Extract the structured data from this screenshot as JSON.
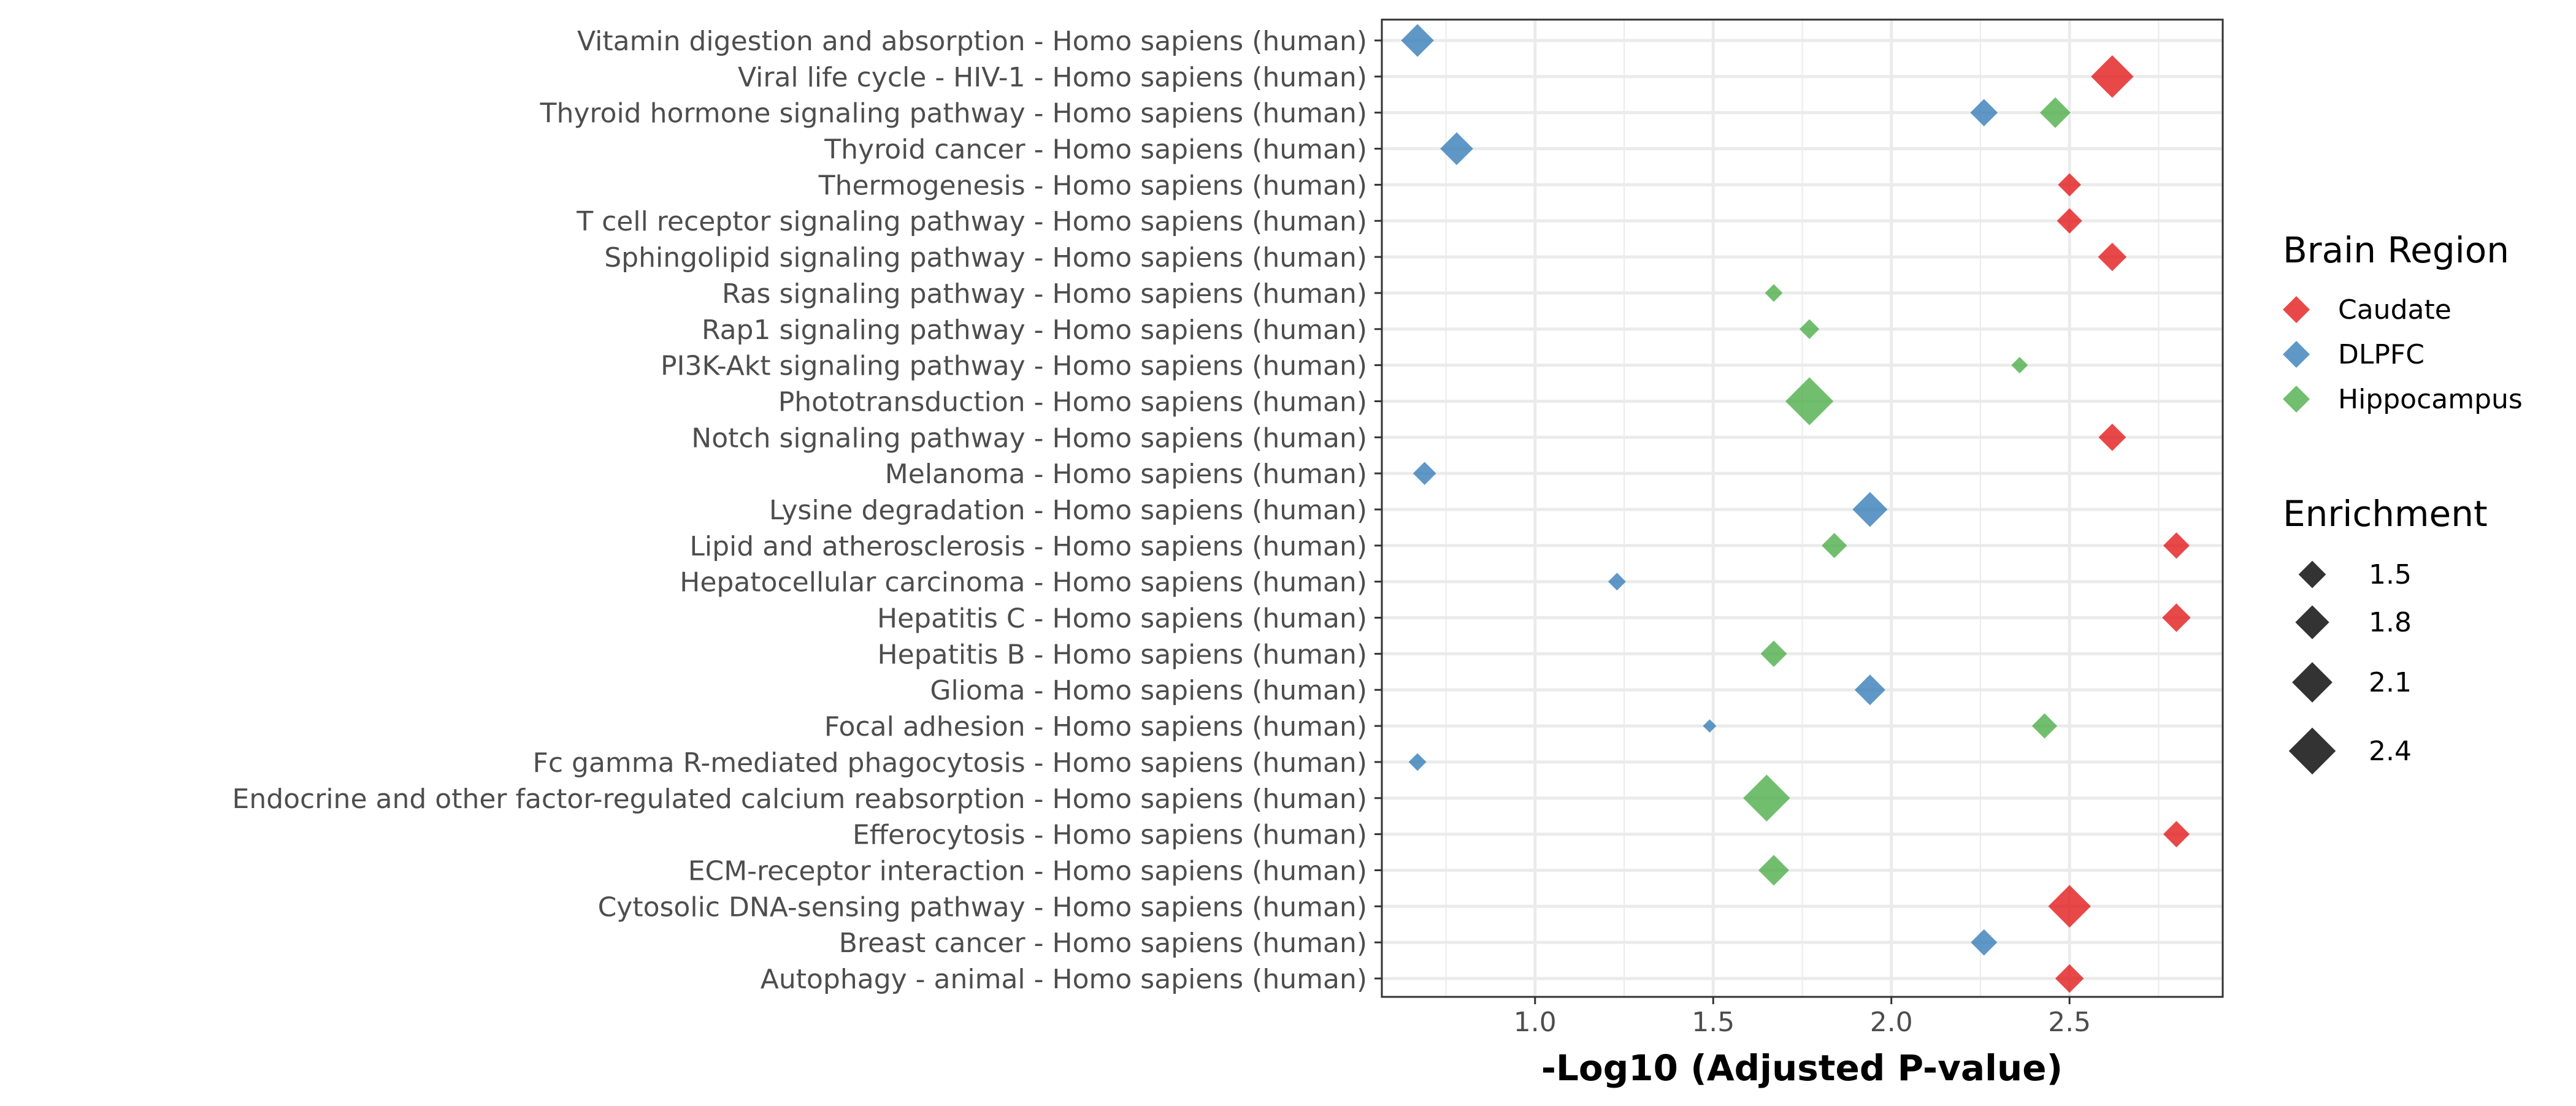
{
  "chart_data": {
    "type": "scatter",
    "title": "",
    "xlabel": "-Log10 (Adjusted P-value)",
    "ylabel": "",
    "xlim": [
      0.57,
      2.93
    ],
    "xticks": [
      1.0,
      1.5,
      2.0,
      2.5
    ],
    "xtick_labels": [
      "1.0",
      "1.5",
      "2.0",
      "2.5"
    ],
    "grid": true,
    "categories": [
      "Vitamin digestion and absorption - Homo sapiens (human)",
      "Viral life cycle - HIV-1 - Homo sapiens (human)",
      "Thyroid hormone signaling pathway - Homo sapiens (human)",
      "Thyroid cancer - Homo sapiens (human)",
      "Thermogenesis - Homo sapiens (human)",
      "T cell receptor signaling pathway - Homo sapiens (human)",
      "Sphingolipid signaling pathway - Homo sapiens (human)",
      "Ras signaling pathway - Homo sapiens (human)",
      "Rap1 signaling pathway - Homo sapiens (human)",
      "PI3K-Akt signaling pathway - Homo sapiens (human)",
      "Phototransduction - Homo sapiens (human)",
      "Notch signaling pathway - Homo sapiens (human)",
      "Melanoma - Homo sapiens (human)",
      "Lysine degradation - Homo sapiens (human)",
      "Lipid and atherosclerosis - Homo sapiens (human)",
      "Hepatocellular carcinoma - Homo sapiens (human)",
      "Hepatitis C - Homo sapiens (human)",
      "Hepatitis B - Homo sapiens (human)",
      "Glioma - Homo sapiens (human)",
      "Focal adhesion - Homo sapiens (human)",
      "Fc gamma R-mediated phagocytosis - Homo sapiens (human)",
      "Endocrine and other factor-regulated calcium reabsorption - Homo sapiens (human)",
      "Efferocytosis - Homo sapiens (human)",
      "ECM-receptor interaction - Homo sapiens (human)",
      "Cytosolic DNA-sensing pathway - Homo sapiens (human)",
      "Breast cancer - Homo sapiens (human)",
      "Autophagy - animal - Homo sapiens (human)"
    ],
    "series": [
      {
        "name": "Caudate",
        "color": "#e41a1c",
        "points": [
          {
            "category": "Viral life cycle - HIV-1 - Homo sapiens (human)",
            "x": 2.62,
            "enrichment": 2.2
          },
          {
            "category": "Thermogenesis - Homo sapiens (human)",
            "x": 2.5,
            "enrichment": 1.3
          },
          {
            "category": "T cell receptor signaling pathway - Homo sapiens (human)",
            "x": 2.5,
            "enrichment": 1.4
          },
          {
            "category": "Sphingolipid signaling pathway - Homo sapiens (human)",
            "x": 2.62,
            "enrichment": 1.55
          },
          {
            "category": "Notch signaling pathway - Homo sapiens (human)",
            "x": 2.62,
            "enrichment": 1.5
          },
          {
            "category": "Lipid and atherosclerosis - Homo sapiens (human)",
            "x": 2.8,
            "enrichment": 1.45
          },
          {
            "category": "Hepatitis C - Homo sapiens (human)",
            "x": 2.8,
            "enrichment": 1.55
          },
          {
            "category": "Efferocytosis - Homo sapiens (human)",
            "x": 2.8,
            "enrichment": 1.45
          },
          {
            "category": "Cytosolic DNA-sensing pathway - Homo sapiens (human)",
            "x": 2.5,
            "enrichment": 2.2
          },
          {
            "category": "Autophagy - animal - Homo sapiens (human)",
            "x": 2.5,
            "enrichment": 1.55
          }
        ]
      },
      {
        "name": "DLPFC",
        "color": "#377eb8",
        "points": [
          {
            "category": "Vitamin digestion and absorption - Homo sapiens (human)",
            "x": 0.67,
            "enrichment": 1.75
          },
          {
            "category": "Thyroid hormone signaling pathway - Homo sapiens (human)",
            "x": 2.26,
            "enrichment": 1.5
          },
          {
            "category": "Thyroid cancer - Homo sapiens (human)",
            "x": 0.78,
            "enrichment": 1.75
          },
          {
            "category": "Melanoma - Homo sapiens (human)",
            "x": 0.69,
            "enrichment": 1.3
          },
          {
            "category": "Lysine degradation - Homo sapiens (human)",
            "x": 1.94,
            "enrichment": 1.85
          },
          {
            "category": "Hepatocellular carcinoma - Homo sapiens (human)",
            "x": 1.23,
            "enrichment": 1.05
          },
          {
            "category": "Glioma - Homo sapiens (human)",
            "x": 1.94,
            "enrichment": 1.65
          },
          {
            "category": "Focal adhesion - Homo sapiens (human)",
            "x": 1.49,
            "enrichment": 0.85
          },
          {
            "category": "Fc gamma R-mediated phagocytosis - Homo sapiens (human)",
            "x": 0.67,
            "enrichment": 1.05
          },
          {
            "category": "Breast cancer - Homo sapiens (human)",
            "x": 2.26,
            "enrichment": 1.45
          }
        ]
      },
      {
        "name": "Hippocampus",
        "color": "#4daf4a",
        "points": [
          {
            "category": "Thyroid hormone signaling pathway - Homo sapiens (human)",
            "x": 2.46,
            "enrichment": 1.65
          },
          {
            "category": "Ras signaling pathway - Homo sapiens (human)",
            "x": 1.67,
            "enrichment": 1.05
          },
          {
            "category": "Rap1 signaling pathway - Homo sapiens (human)",
            "x": 1.77,
            "enrichment": 1.15
          },
          {
            "category": "PI3K-Akt signaling pathway - Homo sapiens (human)",
            "x": 2.36,
            "enrichment": 1.0
          },
          {
            "category": "Phototransduction - Homo sapiens (human)",
            "x": 1.77,
            "enrichment": 2.45
          },
          {
            "category": "Lipid and atherosclerosis - Homo sapiens (human)",
            "x": 1.84,
            "enrichment": 1.4
          },
          {
            "category": "Hepatitis B - Homo sapiens (human)",
            "x": 1.67,
            "enrichment": 1.45
          },
          {
            "category": "Focal adhesion - Homo sapiens (human)",
            "x": 2.43,
            "enrichment": 1.4
          },
          {
            "category": "Endocrine and other factor-regulated calcium reabsorption - Homo sapiens (human)",
            "x": 1.65,
            "enrichment": 2.4
          },
          {
            "category": "ECM-receptor interaction - Homo sapiens (human)",
            "x": 1.67,
            "enrichment": 1.65
          }
        ]
      }
    ],
    "legend_color": {
      "title": "Brain Region",
      "placement": "right",
      "entries": [
        "Caudate",
        "DLPFC",
        "Hippocampus"
      ]
    },
    "legend_size": {
      "title": "Enrichment",
      "placement": "right",
      "entries": [
        {
          "label": "1.5",
          "value": 1.5
        },
        {
          "label": "1.8",
          "value": 1.8
        },
        {
          "label": "2.1",
          "value": 2.1
        },
        {
          "label": "2.4",
          "value": 2.4
        }
      ]
    },
    "size_scale": {
      "min_enrichment": 0.8,
      "max_enrichment": 2.5
    }
  },
  "colors": {
    "panel_border": "#333333",
    "grid": "#ebebeb",
    "tick": "#333333",
    "size_legend_marker": "#333333"
  }
}
